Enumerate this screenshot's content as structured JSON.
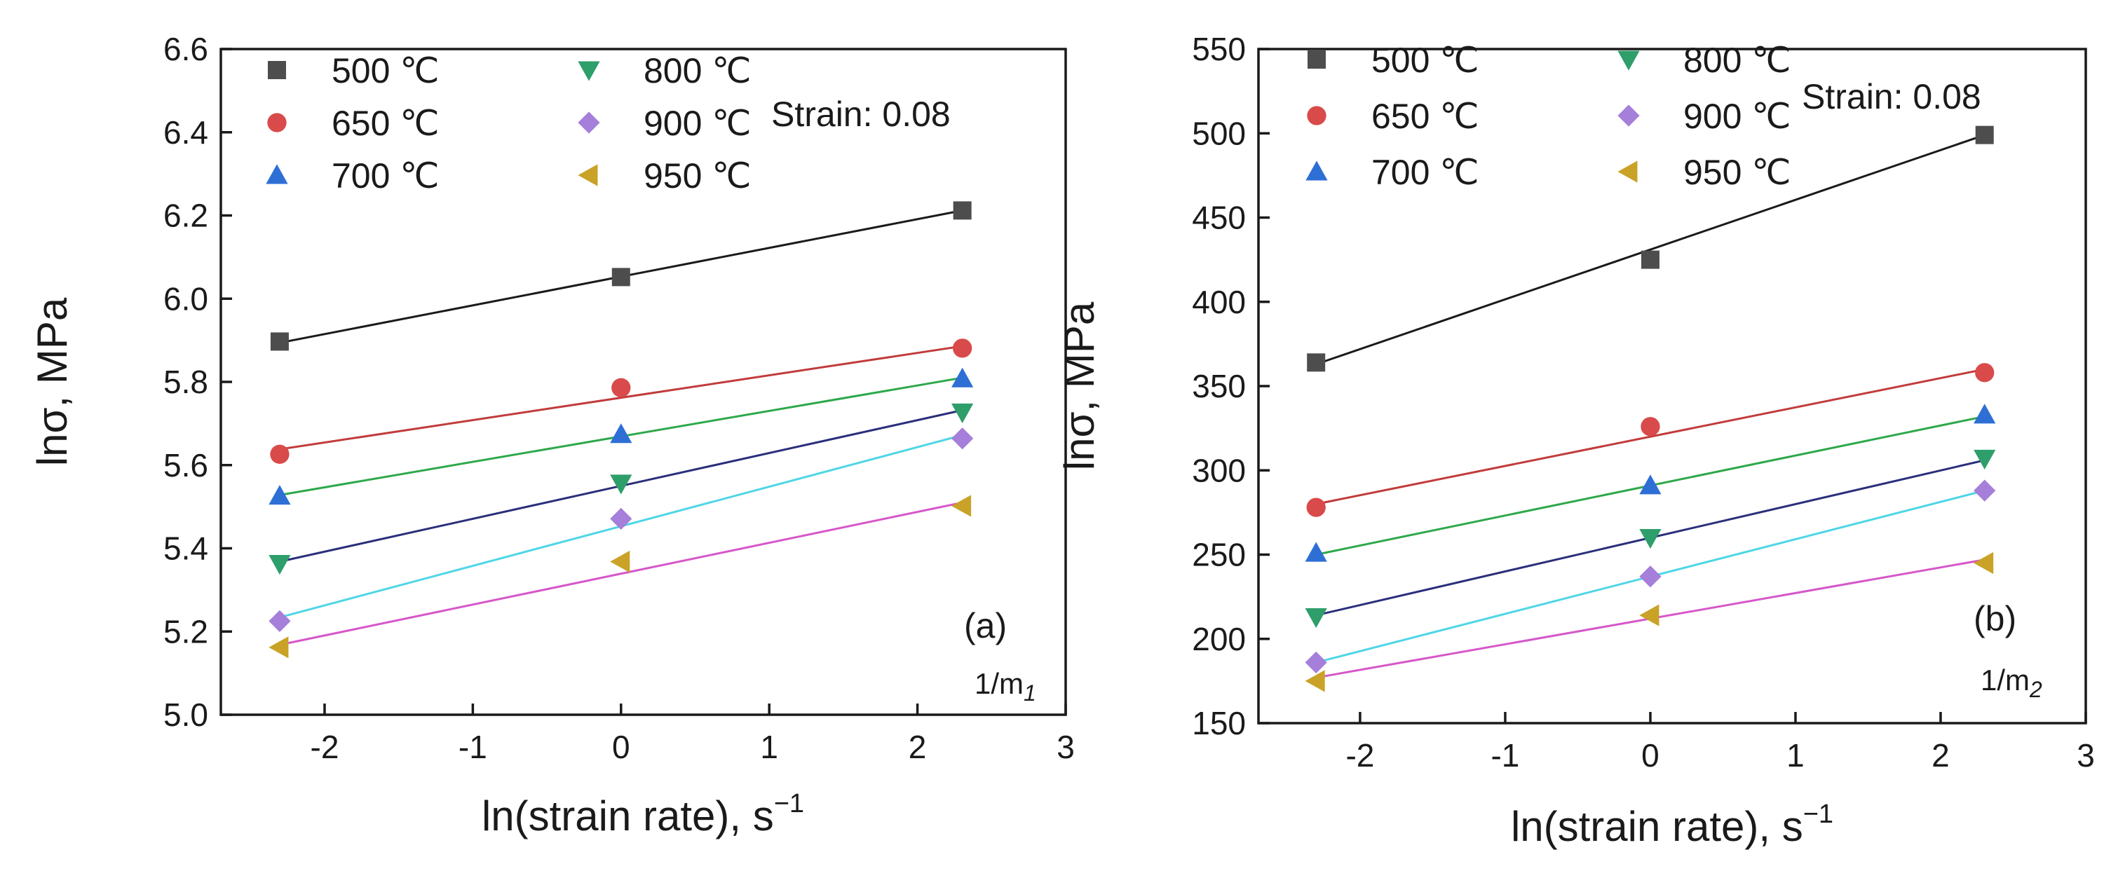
{
  "chart_data": [
    {
      "type": "scatter",
      "panel_label": "(a)",
      "annotation": "Strain: 0.08",
      "slope_label": "1/m",
      "slope_subscript": "1",
      "xlabel": "ln(strain rate), s",
      "xlabel_superscript": "−1",
      "ylabel": "lnσ, MPa",
      "xlim": [
        -2.7,
        3
      ],
      "ylim": [
        5.0,
        6.6
      ],
      "x_ticks": [
        -2,
        -1,
        0,
        1,
        2,
        3
      ],
      "x_tick_labels": [
        "-2",
        "-1",
        "0",
        "1",
        "2",
        "3"
      ],
      "y_ticks": [
        5.0,
        5.2,
        5.4,
        5.6,
        5.8,
        6.0,
        6.2,
        6.4,
        6.6
      ],
      "y_tick_labels": [
        "5.0",
        "5.2",
        "5.4",
        "5.6",
        "5.8",
        "6.0",
        "6.2",
        "6.4",
        "6.6"
      ],
      "x": [
        -2.303,
        0,
        2.303
      ],
      "series": [
        {
          "name": "500 ℃",
          "marker": "square",
          "color": "#4d4d4d",
          "line_color": "#1a1a1a",
          "values": [
            5.897,
            6.052,
            6.212
          ],
          "fit": [
            5.894,
            6.212
          ]
        },
        {
          "name": "650 ℃",
          "marker": "circle",
          "color": "#d94a4a",
          "line_color": "#c23b3b",
          "values": [
            5.626,
            5.786,
            5.881
          ],
          "fit": [
            5.638,
            5.886
          ]
        },
        {
          "name": "700 ℃",
          "marker": "triangle-up",
          "color": "#2e6fd6",
          "line_color": "#2ea84a",
          "values": [
            5.526,
            5.674,
            5.808
          ],
          "fit": [
            5.528,
            5.81
          ]
        },
        {
          "name": "800 ℃",
          "marker": "triangle-down",
          "color": "#2e9e6a",
          "line_color": "#2b2f7a",
          "values": [
            5.363,
            5.556,
            5.727
          ],
          "fit": [
            5.368,
            5.732
          ]
        },
        {
          "name": "900 ℃",
          "marker": "diamond",
          "color": "#a57fd9",
          "line_color": "#4fd6e6",
          "values": [
            5.225,
            5.471,
            5.664
          ],
          "fit": [
            5.234,
            5.672
          ]
        },
        {
          "name": "950 ℃",
          "marker": "triangle-left",
          "color": "#c9a227",
          "line_color": "#d657c9",
          "values": [
            5.162,
            5.368,
            5.502
          ],
          "fit": [
            5.168,
            5.51
          ]
        }
      ]
    },
    {
      "type": "scatter",
      "panel_label": "(b)",
      "annotation": "Strain: 0.08",
      "slope_label": "1/m",
      "slope_subscript": "2",
      "xlabel": "ln(strain rate), s",
      "xlabel_superscript": "−1",
      "ylabel": "lnσ, MPa",
      "xlim": [
        -2.7,
        3
      ],
      "ylim": [
        150,
        550
      ],
      "x_ticks": [
        -2,
        -1,
        0,
        1,
        2,
        3
      ],
      "x_tick_labels": [
        "-2",
        "-1",
        "0",
        "1",
        "2",
        "3"
      ],
      "y_ticks": [
        150,
        200,
        250,
        300,
        350,
        400,
        450,
        500,
        550
      ],
      "y_tick_labels": [
        "150",
        "200",
        "250",
        "300",
        "350",
        "400",
        "450",
        "500",
        "550"
      ],
      "x": [
        -2.303,
        0,
        2.303
      ],
      "series": [
        {
          "name": "500 ℃",
          "marker": "square",
          "color": "#4d4d4d",
          "line_color": "#1a1a1a",
          "values": [
            364,
            425,
            499
          ],
          "fit": [
            363,
            499
          ]
        },
        {
          "name": "650 ℃",
          "marker": "circle",
          "color": "#d94a4a",
          "line_color": "#c23b3b",
          "values": [
            278,
            326,
            358
          ],
          "fit": [
            280,
            360
          ]
        },
        {
          "name": "700 ℃",
          "marker": "triangle-up",
          "color": "#2e6fd6",
          "line_color": "#2ea84a",
          "values": [
            251,
            291,
            333
          ],
          "fit": [
            250,
            332
          ]
        },
        {
          "name": "800 ℃",
          "marker": "triangle-down",
          "color": "#2e9e6a",
          "line_color": "#2b2f7a",
          "values": [
            213,
            260,
            307
          ],
          "fit": [
            214,
            306
          ]
        },
        {
          "name": "900 ℃",
          "marker": "diamond",
          "color": "#a57fd9",
          "line_color": "#4fd6e6",
          "values": [
            186,
            237,
            288
          ],
          "fit": [
            186,
            288
          ]
        },
        {
          "name": "950 ℃",
          "marker": "triangle-left",
          "color": "#c9a227",
          "line_color": "#d657c9",
          "values": [
            175,
            214,
            245
          ],
          "fit": [
            177,
            247
          ]
        }
      ]
    }
  ]
}
